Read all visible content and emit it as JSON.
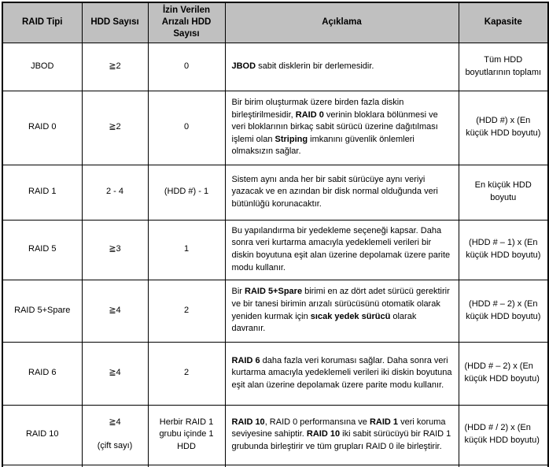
{
  "style": {
    "header_bg": "#c0c0c0",
    "border_color": "#000000",
    "text_color": "#000000"
  },
  "table": {
    "headers": {
      "raid_type": "RAID Tipi",
      "hdd_count": "HDD Sayısı",
      "allowed_failed": "İzin Verilen Arızalı HDD Sayısı",
      "description": "Açıklama",
      "capacity": "Kapasite"
    },
    "rows": [
      {
        "raid_type": "JBOD",
        "hdd_count": "≧2",
        "allowed_failed": "0",
        "description": [
          {
            "text": "JBOD",
            "bold": true
          },
          {
            "text": " sabit disklerin bir derlemesidir.",
            "bold": false
          }
        ],
        "capacity": "Tüm HDD boyutlarının toplamı"
      },
      {
        "raid_type": "RAID 0",
        "hdd_count": "≧2",
        "allowed_failed": "0",
        "description": [
          {
            "text": "Bir birim oluşturmak üzere birden fazla diskin birleştirilmesidir, ",
            "bold": false
          },
          {
            "text": "RAID 0",
            "bold": true
          },
          {
            "text": " verinin bloklara bölünmesi ve veri bloklarının birkaç sabit sürücü üzerine dağıtılması işlemi olan ",
            "bold": false
          },
          {
            "text": "Striping",
            "bold": true
          },
          {
            "text": " imkanını güvenlik önlemleri olmaksızın sağlar.",
            "bold": false
          }
        ],
        "capacity": "(HDD #) x (En küçük HDD boyutu)"
      },
      {
        "raid_type": "RAID 1",
        "hdd_count": "2 - 4",
        "allowed_failed": "(HDD #) - 1",
        "description": [
          {
            "text": "Sistem aynı anda her bir sabit sürücüye aynı veriyi yazacak ve en azından bir disk normal olduğunda veri bütünlüğü korunacaktır.",
            "bold": false
          }
        ],
        "capacity": "En küçük HDD boyutu"
      },
      {
        "raid_type": "RAID 5",
        "hdd_count": "≧3",
        "allowed_failed": "1",
        "description": [
          {
            "text": "Bu yapılandırma bir yedekleme seçeneği kapsar. Daha sonra veri kurtarma amacıyla yedeklemeli verileri bir diskin boyutuna eşit alan üzerine depolamak üzere parite modu kullanır.",
            "bold": false
          }
        ],
        "capacity": "(HDD # – 1) x (En küçük HDD boyutu)"
      },
      {
        "raid_type": "RAID 5+Spare",
        "hdd_count": "≧4",
        "allowed_failed": "2",
        "description": [
          {
            "text": "Bir ",
            "bold": false
          },
          {
            "text": "RAID 5+Spare",
            "bold": true
          },
          {
            "text": " birimi en az dört adet sürücü gerektirir ve bir tanesi birimin arızalı sürücüsünü otomatik olarak yeniden kurmak için ",
            "bold": false
          },
          {
            "text": "sıcak yedek sürücü",
            "bold": true
          },
          {
            "text": " olarak davranır.",
            "bold": false
          }
        ],
        "capacity": "(HDD # – 2) x (En küçük HDD boyutu)"
      },
      {
        "raid_type": "RAID 6",
        "hdd_count": "≧4",
        "allowed_failed": "2",
        "description": [
          {
            "text": "RAID 6",
            "bold": true
          },
          {
            "text": " daha fazla veri koruması sağlar. Daha sonra veri kurtarma amacıyla yedeklemeli verileri iki diskin boyutuna eşit alan üzerine depolamak üzere parite modu kullanır.",
            "bold": false
          }
        ],
        "capacity": "(HDD # – 2) x (En küçük HDD boyutu)"
      },
      {
        "raid_type": "RAID 10",
        "hdd_count": "≧4",
        "hdd_count_note": "(çift sayı)",
        "allowed_failed": "Herbir RAID 1 grubu içinde 1 HDD",
        "description": [
          {
            "text": "RAID 10",
            "bold": true
          },
          {
            "text": ", RAID 0 performansına ve ",
            "bold": false
          },
          {
            "text": "RAID 1",
            "bold": true
          },
          {
            "text": " veri koruma seviyesine sahiptir. ",
            "bold": false
          },
          {
            "text": "RAID 10",
            "bold": true
          },
          {
            "text": " iki sabit sürücüyü bir RAID 1 grubunda birleştirir ve tüm grupları RAID 0 ile birleştirir.",
            "bold": false
          }
        ],
        "capacity": "(HDD # / 2) x (En küçük HDD boyutu)"
      }
    ]
  }
}
